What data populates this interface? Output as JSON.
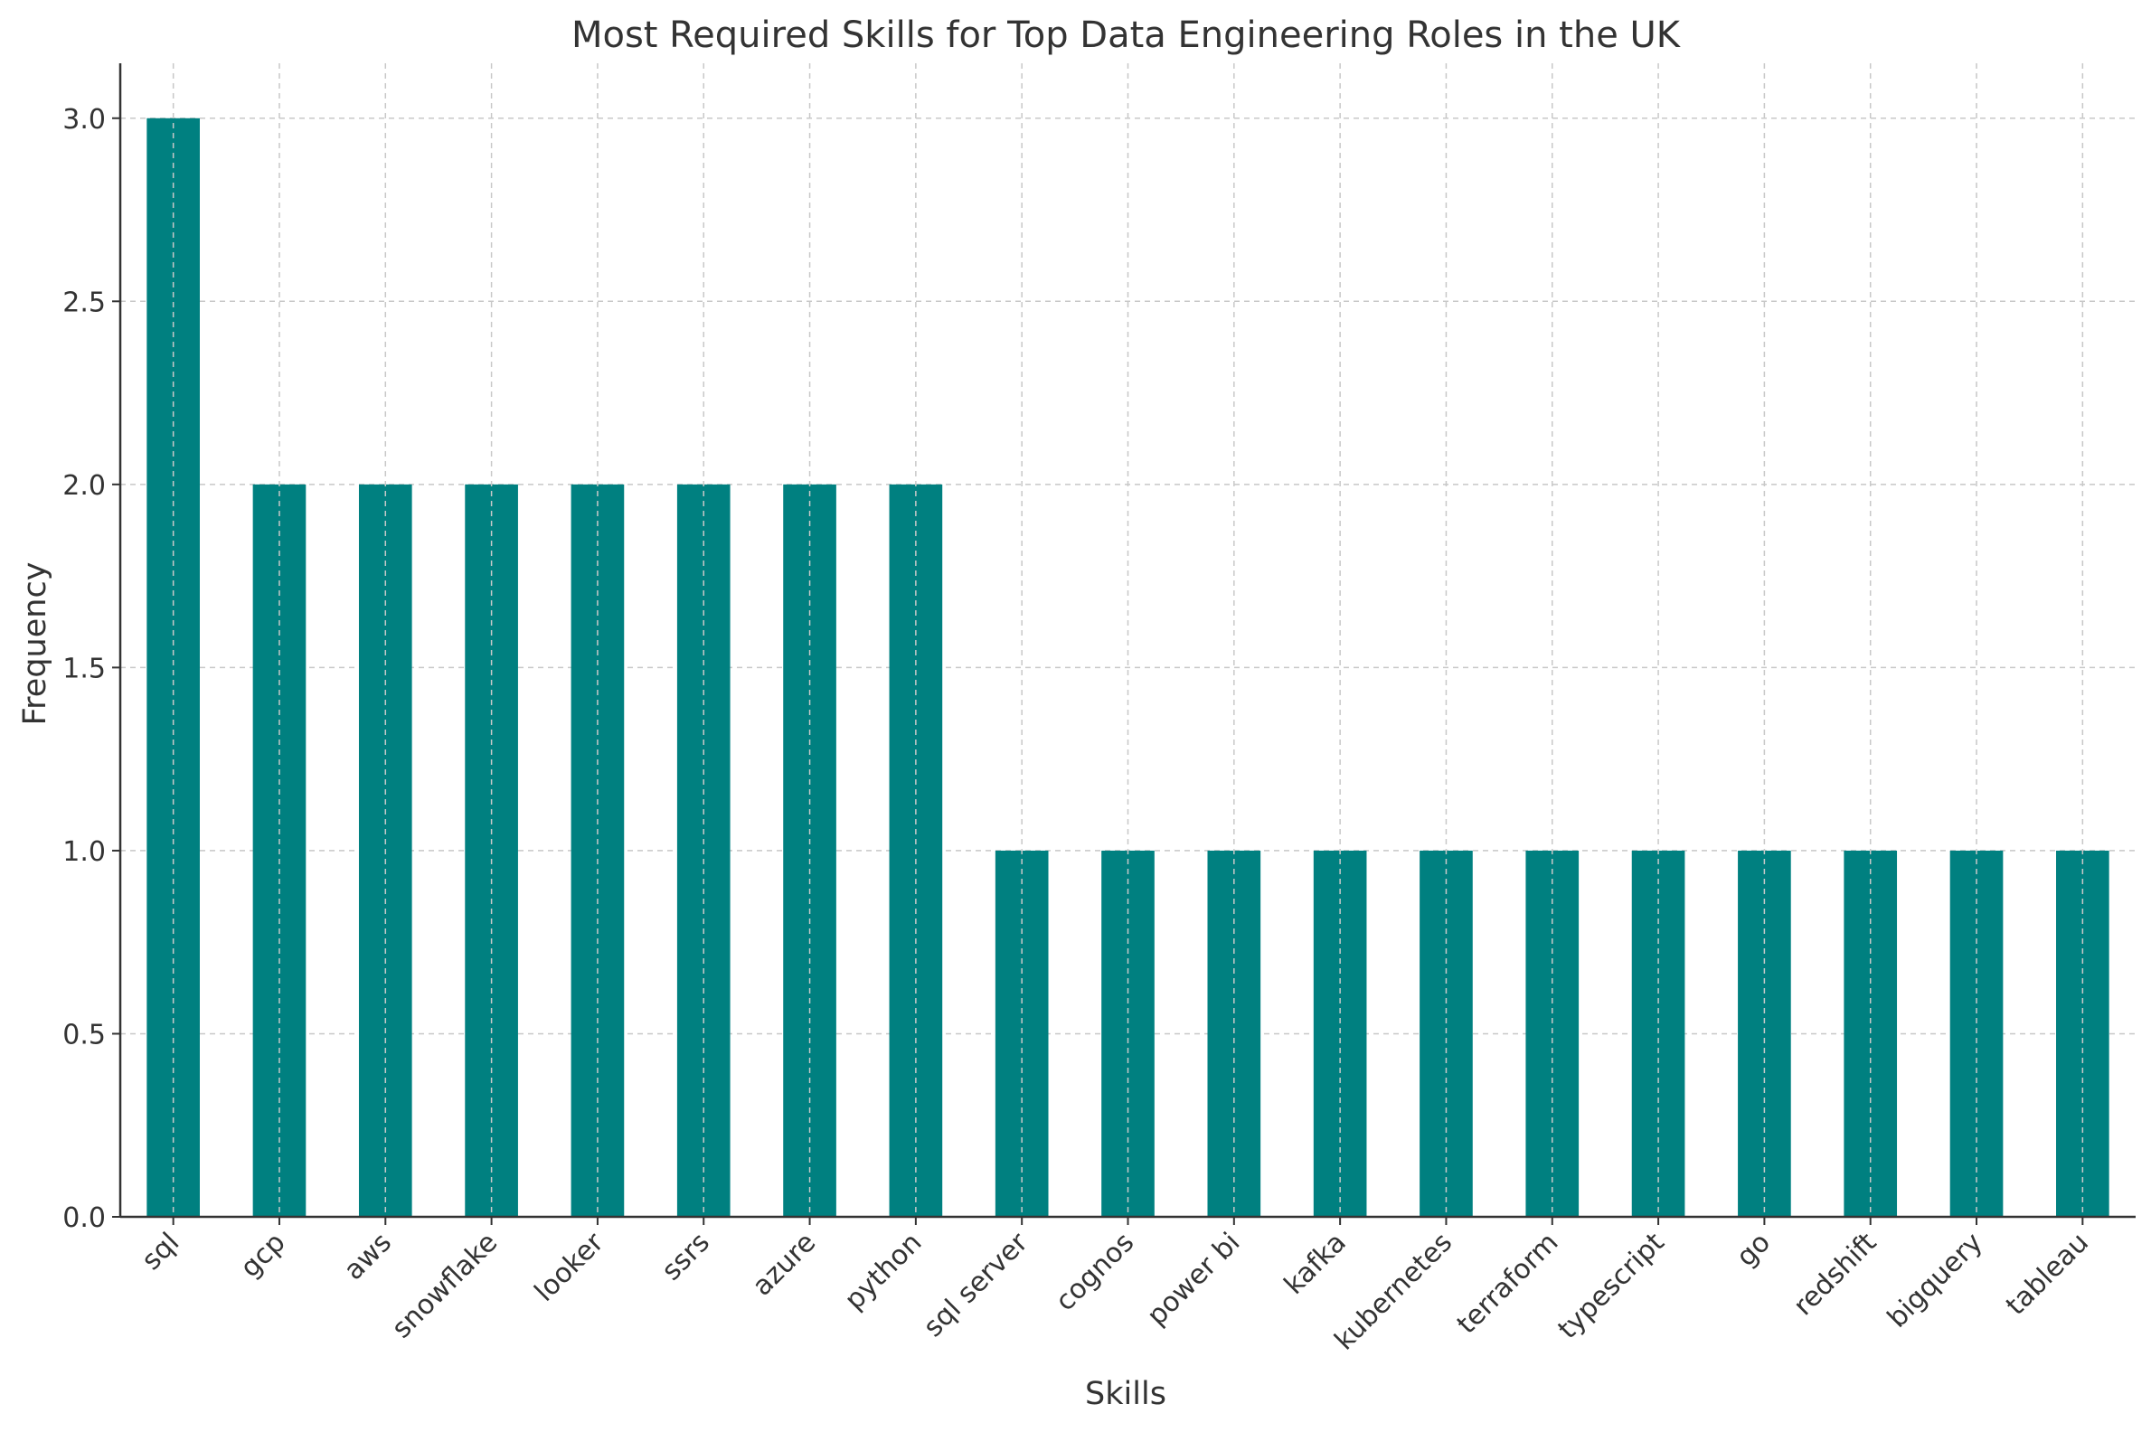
{
  "chart_data": {
    "type": "bar",
    "title": "Most Required Skills for Top Data Engineering Roles in the UK",
    "xlabel": "Skills",
    "ylabel": "Frequency",
    "categories": [
      "sql",
      "gcp",
      "aws",
      "snowflake",
      "looker",
      "ssrs",
      "azure",
      "python",
      "sql server",
      "cognos",
      "power bi",
      "kafka",
      "kubernetes",
      "terraform",
      "typescript",
      "go",
      "redshift",
      "bigquery",
      "tableau"
    ],
    "values": [
      3,
      2,
      2,
      2,
      2,
      2,
      2,
      2,
      1,
      1,
      1,
      1,
      1,
      1,
      1,
      1,
      1,
      1,
      1
    ],
    "ylim": [
      0,
      3.15
    ],
    "yticks": [
      0.0,
      0.5,
      1.0,
      1.5,
      2.0,
      2.5,
      3.0
    ],
    "ytick_labels": [
      "0.0",
      "0.5",
      "1.0",
      "1.5",
      "2.0",
      "2.5",
      "3.0"
    ],
    "grid": true,
    "bar_color": "#008080",
    "grid_color": "#c8c8c8"
  }
}
